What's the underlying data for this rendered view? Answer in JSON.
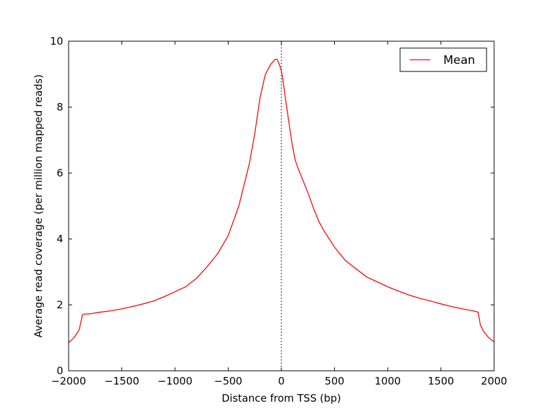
{
  "chart_data": {
    "type": "line",
    "xlabel": "Distance from TSS (bp)",
    "ylabel": "Average read coverage (per million mapped reads)",
    "xlim": [
      -2000,
      2000
    ],
    "ylim": [
      0,
      10
    ],
    "xticks": [
      -2000,
      -1500,
      -1000,
      -500,
      0,
      500,
      1000,
      1500,
      2000
    ],
    "xtick_labels": [
      "−2000",
      "−1500",
      "−1000",
      "−500",
      "0",
      "500",
      "1000",
      "1500",
      "2000"
    ],
    "yticks": [
      0,
      2,
      4,
      6,
      8,
      10
    ],
    "ytick_labels": [
      "0",
      "2",
      "4",
      "6",
      "8",
      "10"
    ],
    "grid": false,
    "legend_position": "top-right",
    "reference_line": {
      "x": 0,
      "style": "dotted",
      "color": "#000000"
    },
    "series": [
      {
        "name": "Mean",
        "color": "#ff0000",
        "x": [
          -2000,
          -1950,
          -1900,
          -1870,
          -1850,
          -1800,
          -1700,
          -1600,
          -1500,
          -1400,
          -1300,
          -1200,
          -1100,
          -1000,
          -900,
          -800,
          -700,
          -600,
          -500,
          -400,
          -300,
          -250,
          -200,
          -150,
          -100,
          -60,
          -40,
          -20,
          0,
          20,
          50,
          100,
          130,
          150,
          200,
          250,
          300,
          350,
          400,
          450,
          500,
          600,
          700,
          800,
          900,
          1000,
          1100,
          1200,
          1300,
          1400,
          1500,
          1600,
          1700,
          1800,
          1850,
          1870,
          1900,
          1950,
          2000
        ],
        "y": [
          0.85,
          1.0,
          1.25,
          1.7,
          1.72,
          1.73,
          1.78,
          1.82,
          1.88,
          1.95,
          2.03,
          2.12,
          2.25,
          2.4,
          2.55,
          2.8,
          3.15,
          3.55,
          4.1,
          5.0,
          6.3,
          7.2,
          8.3,
          9.0,
          9.3,
          9.45,
          9.45,
          9.3,
          9.1,
          8.7,
          8.0,
          6.9,
          6.4,
          6.2,
          5.8,
          5.4,
          4.95,
          4.55,
          4.25,
          4.0,
          3.75,
          3.35,
          3.1,
          2.85,
          2.7,
          2.55,
          2.42,
          2.3,
          2.2,
          2.12,
          2.03,
          1.95,
          1.88,
          1.82,
          1.78,
          1.4,
          1.2,
          1.0,
          0.88
        ]
      }
    ]
  }
}
